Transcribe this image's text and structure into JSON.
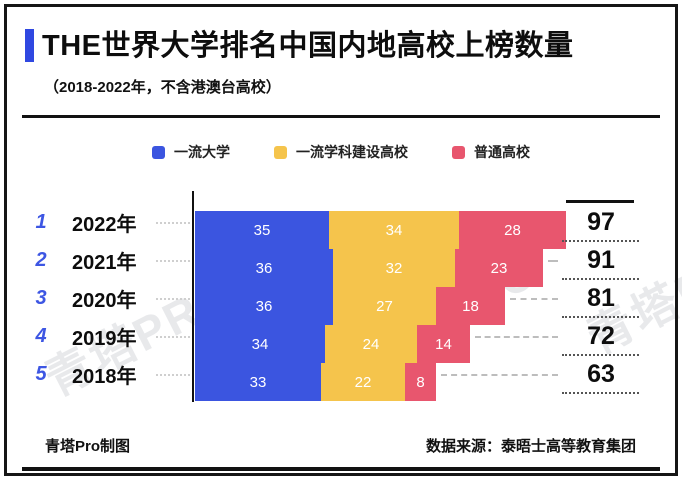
{
  "title": {
    "text": "THE世界大学排名中国内地高校上榜数量",
    "subtitle": "（2018-2022年，不含港澳台高校）"
  },
  "legend": {
    "items": [
      {
        "label": "一流大学",
        "color": "#3B55E0"
      },
      {
        "label": "一流学科建设高校",
        "color": "#F5C44C"
      },
      {
        "label": "普通高校",
        "color": "#E8566E"
      }
    ]
  },
  "chart_data": {
    "type": "bar",
    "orientation": "horizontal",
    "stacked": true,
    "title": "THE世界大学排名中国内地高校上榜数量",
    "subtitle": "（2018-2022年，不含港澳台高校）",
    "categories": [
      "2022年",
      "2021年",
      "2020年",
      "2019年",
      "2018年"
    ],
    "ranks": [
      "1",
      "2",
      "3",
      "4",
      "5"
    ],
    "series": [
      {
        "name": "一流大学",
        "color": "#3B55E0",
        "values": [
          35,
          36,
          36,
          34,
          33
        ]
      },
      {
        "name": "一流学科建设高校",
        "color": "#F5C44C",
        "values": [
          34,
          32,
          27,
          24,
          22
        ]
      },
      {
        "name": "普通高校",
        "color": "#E8566E",
        "values": [
          28,
          23,
          18,
          14,
          8
        ]
      }
    ],
    "totals": [
      97,
      91,
      81,
      72,
      63
    ],
    "xlim": [
      0,
      97
    ],
    "value_labels": true,
    "legend_position": "top",
    "grid": false
  },
  "footer": {
    "left": "青塔Pro制图",
    "right": "数据来源：泰晤士高等教育集团"
  },
  "watermark": {
    "text": "青塔PRO"
  },
  "colors": {
    "accent": "#2F48E1",
    "rank_number": "#3D56E3",
    "axis": "#141414",
    "bar_value_text": "#FFFFFF"
  }
}
